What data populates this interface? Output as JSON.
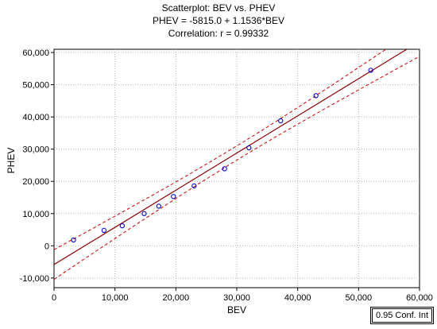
{
  "chart_data": {
    "type": "scatter",
    "title_lines": [
      "Scatterplot: BEV vs. PHEV",
      "PHEV = -5815.0 + 1.1536*BEV",
      "Correlation: r = 0.99332"
    ],
    "xlabel": "BEV",
    "ylabel": "PHEV",
    "xlim": [
      0,
      60000
    ],
    "ylim": [
      -13000,
      61000
    ],
    "x_ticks": [
      0,
      10000,
      20000,
      30000,
      40000,
      50000,
      60000
    ],
    "x_tick_labels": [
      "0",
      "10,000",
      "20,000",
      "30,000",
      "40,000",
      "50,000",
      "60,000"
    ],
    "y_ticks": [
      -10000,
      0,
      10000,
      20000,
      30000,
      40000,
      50000,
      60000
    ],
    "y_tick_labels": [
      "-10,000",
      "0",
      "10,000",
      "20,000",
      "30,000",
      "40,000",
      "50,000",
      "60,000"
    ],
    "grid": true,
    "points": [
      {
        "x": 3200,
        "y": 1800
      },
      {
        "x": 8200,
        "y": 4800
      },
      {
        "x": 11200,
        "y": 6200
      },
      {
        "x": 14800,
        "y": 10000
      },
      {
        "x": 17200,
        "y": 12300
      },
      {
        "x": 19600,
        "y": 15300
      },
      {
        "x": 23000,
        "y": 18600
      },
      {
        "x": 28000,
        "y": 23900
      },
      {
        "x": 32000,
        "y": 30400
      },
      {
        "x": 37200,
        "y": 38800
      },
      {
        "x": 43000,
        "y": 46600
      },
      {
        "x": 52000,
        "y": 54500
      }
    ],
    "regression": {
      "intercept": -5815.0,
      "slope": 1.1536
    },
    "confidence_band": {
      "level_label": "0.95 Conf. Int",
      "half_width_at": [
        {
          "x": 0,
          "w": 4600
        },
        {
          "x": 30000,
          "w": 2200
        },
        {
          "x": 60000,
          "w": 4600
        }
      ]
    },
    "colors": {
      "points": "#0000cc",
      "fit_line": "#8b0000",
      "ci_line": "#cc0000",
      "grid": "#b0b0b0"
    }
  }
}
